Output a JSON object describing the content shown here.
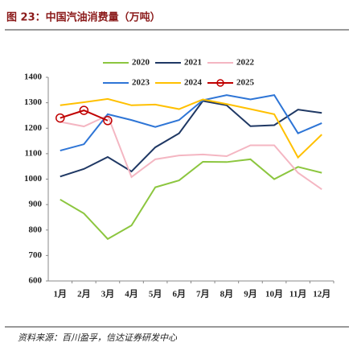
{
  "chart_data": {
    "type": "line",
    "title": "图 23：中国汽油消费量（万吨）",
    "source": "资料来源：百川盈孚，信达证券研发中心",
    "categories": [
      "1月",
      "2月",
      "3月",
      "4月",
      "5月",
      "6月",
      "7月",
      "8月",
      "9月",
      "10月",
      "11月",
      "12月"
    ],
    "series": [
      {
        "name": "2020",
        "color": "#8cc63f",
        "values": [
          920,
          865,
          765,
          818,
          968,
          995,
          1068,
          1067,
          1078,
          1000,
          1048,
          1025
        ]
      },
      {
        "name": "2021",
        "color": "#1f3864",
        "values": [
          1010,
          1040,
          1087,
          1030,
          1125,
          1180,
          1307,
          1290,
          1208,
          1212,
          1273,
          1260
        ]
      },
      {
        "name": "2022",
        "color": "#f4b6c2",
        "values": [
          1225,
          1207,
          1250,
          1008,
          1078,
          1093,
          1097,
          1090,
          1133,
          1133,
          1025,
          960
        ]
      },
      {
        "name": "2023",
        "color": "#2e75d6",
        "values": [
          1112,
          1137,
          1255,
          1232,
          1205,
          1232,
          1310,
          1330,
          1313,
          1330,
          1180,
          1220
        ]
      },
      {
        "name": "2024",
        "color": "#ffc000",
        "values": [
          1290,
          1302,
          1315,
          1290,
          1293,
          1275,
          1313,
          1295,
          1275,
          1255,
          1085,
          1175
        ]
      },
      {
        "name": "2025",
        "color": "#c00000",
        "markers": true,
        "values": [
          1240,
          1270,
          1230,
          null,
          null,
          null,
          null,
          null,
          null,
          null,
          null,
          null
        ]
      }
    ],
    "ylim": [
      600,
      1400
    ],
    "yticks": [
      600,
      700,
      800,
      900,
      1000,
      1100,
      1200,
      1300,
      1400
    ]
  }
}
